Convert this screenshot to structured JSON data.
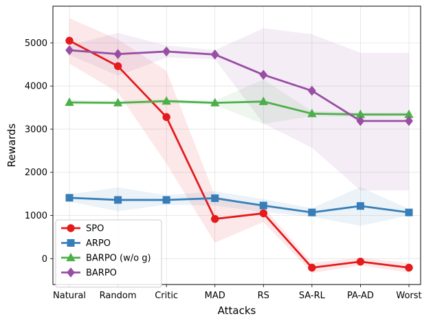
{
  "chart_data": {
    "type": "line",
    "xlabel": "Attacks",
    "ylabel": "Rewards",
    "categories": [
      "Natural",
      "Random",
      "Critic",
      "MAD",
      "RS",
      "SA-RL",
      "PA-AD",
      "Worst"
    ],
    "ylim": [
      -600,
      5850
    ],
    "yticks": [
      0,
      1000,
      2000,
      3000,
      4000,
      5000
    ],
    "grid": true,
    "legend": "lower-left",
    "series": [
      {
        "name": "SPO",
        "color": "#e41a1c",
        "marker": "circle",
        "values": [
          5050,
          4460,
          3280,
          920,
          1050,
          -210,
          -70,
          -210
        ],
        "lower": [
          4520,
          3850,
          2200,
          370,
          850,
          -330,
          -160,
          -320
        ],
        "upper": [
          5570,
          5080,
          4350,
          1450,
          1200,
          -100,
          20,
          -100
        ]
      },
      {
        "name": "ARPO",
        "color": "#377eb8",
        "marker": "square",
        "values": [
          1410,
          1360,
          1360,
          1400,
          1230,
          1070,
          1220,
          1070
        ],
        "lower": [
          1320,
          1100,
          1250,
          1230,
          1080,
          970,
          760,
          1000
        ],
        "upper": [
          1490,
          1650,
          1470,
          1560,
          1380,
          1170,
          1660,
          1150
        ]
      },
      {
        "name": "BARPO (w/o g)",
        "color": "#4daf4a",
        "marker": "triangle",
        "values": [
          3620,
          3610,
          3650,
          3610,
          3640,
          3360,
          3340,
          3340
        ],
        "lower": [
          3560,
          3560,
          3600,
          3560,
          3120,
          3300,
          3290,
          3300
        ],
        "upper": [
          3680,
          3660,
          3700,
          3660,
          4150,
          3420,
          3390,
          3390
        ]
      },
      {
        "name": "BARPO",
        "color": "#984ea3",
        "marker": "diamond",
        "values": [
          4830,
          4740,
          4800,
          4730,
          4260,
          3890,
          3190,
          3190
        ],
        "lower": [
          4720,
          4240,
          4660,
          4620,
          3130,
          2570,
          1580,
          1580
        ],
        "upper": [
          4940,
          5230,
          4940,
          4830,
          5340,
          5200,
          4770,
          4770
        ]
      }
    ]
  }
}
